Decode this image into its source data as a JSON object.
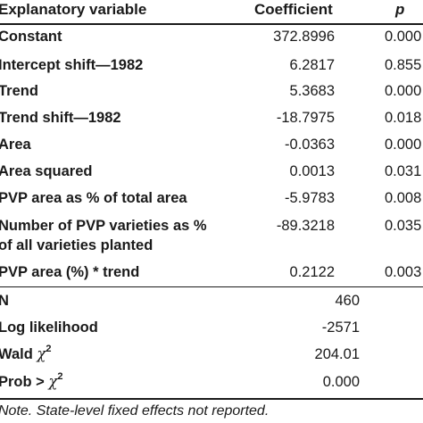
{
  "header": {
    "variable": "Explanatory variable",
    "coefficient": "Coefficient",
    "p": "p"
  },
  "rows": [
    {
      "label": "Constant",
      "coef": "372.8996",
      "p": "0.000"
    },
    {
      "label": "Intercept shift—1982",
      "coef": "6.2817",
      "p": "0.855"
    },
    {
      "label": "Trend",
      "coef": "5.3683",
      "p": "0.000"
    },
    {
      "label": "Trend shift—1982",
      "coef": "-18.7975",
      "p": "0.018"
    },
    {
      "label": "Area",
      "coef": "-0.0363",
      "p": "0.000"
    },
    {
      "label": "Area squared",
      "coef": "0.0013",
      "p": "0.031"
    },
    {
      "label": "PVP area as % of total area",
      "coef": "-5.9783",
      "p": "0.008"
    },
    {
      "label_line1": "Number of PVP varieties as %",
      "label_line2": "of all varieties planted",
      "coef": "-89.3218",
      "p": "0.035"
    },
    {
      "label": "PVP area (%) * trend",
      "coef": "0.2122",
      "p": "0.003"
    }
  ],
  "stats": {
    "n_label": "N",
    "n_value": "460",
    "ll_label": "Log likelihood",
    "ll_value": "-2571",
    "wald_label": "Wald",
    "wald_value": "204.01",
    "prob_label": "Prob >",
    "prob_value": "0.000",
    "chi_symbol": "χ",
    "chi_exp": "2"
  },
  "note": "Note. State-level fixed effects not reported."
}
